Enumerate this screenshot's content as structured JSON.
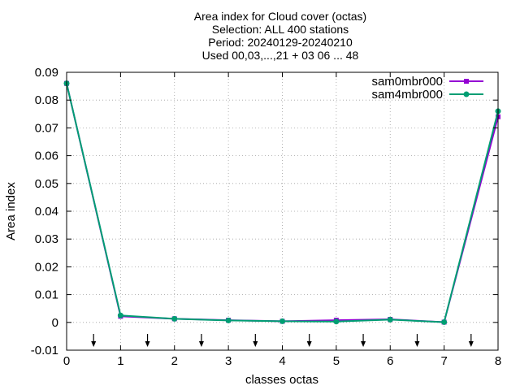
{
  "chart_data": {
    "type": "line",
    "title_lines": [
      "Area index  for Cloud cover (octas)",
      "Selection: ALL    400 stations",
      "Period: 20240129-20240210",
      "Used 00,03,...,21 + 03 06 ... 48"
    ],
    "xlabel": "classes octas",
    "ylabel": "Area index",
    "xlim": [
      0,
      8
    ],
    "ylim": [
      -0.01,
      0.09
    ],
    "x_ticks": [
      0,
      1,
      2,
      3,
      4,
      5,
      6,
      7,
      8
    ],
    "y_ticks": [
      -0.01,
      0,
      0.01,
      0.02,
      0.03,
      0.04,
      0.05,
      0.06,
      0.07,
      0.08,
      0.09
    ],
    "y_tick_labels": [
      "-0.01",
      "0",
      "0.01",
      "0.02",
      "0.03",
      "0.04",
      "0.05",
      "0.06",
      "0.07",
      "0.08",
      "0.09"
    ],
    "grid": true,
    "legend_position": "top-right",
    "arrow_x": [
      0.5,
      1.5,
      2.5,
      3.5,
      4.5,
      5.5,
      6.5,
      7.5
    ],
    "x": [
      0,
      1,
      2,
      3,
      4,
      5,
      6,
      7,
      8
    ],
    "series": [
      {
        "name": "sam0mbr000",
        "color": "#9400d3",
        "values": [
          0.086,
          0.0022,
          0.0013,
          0.0008,
          0.0004,
          0.0008,
          0.0011,
          0.0001,
          0.074
        ]
      },
      {
        "name": "sam4mbr000",
        "color": "#009e73",
        "values": [
          0.086,
          0.0025,
          0.0013,
          0.0007,
          0.0004,
          0.0003,
          0.001,
          0.0001,
          0.076
        ]
      }
    ]
  }
}
